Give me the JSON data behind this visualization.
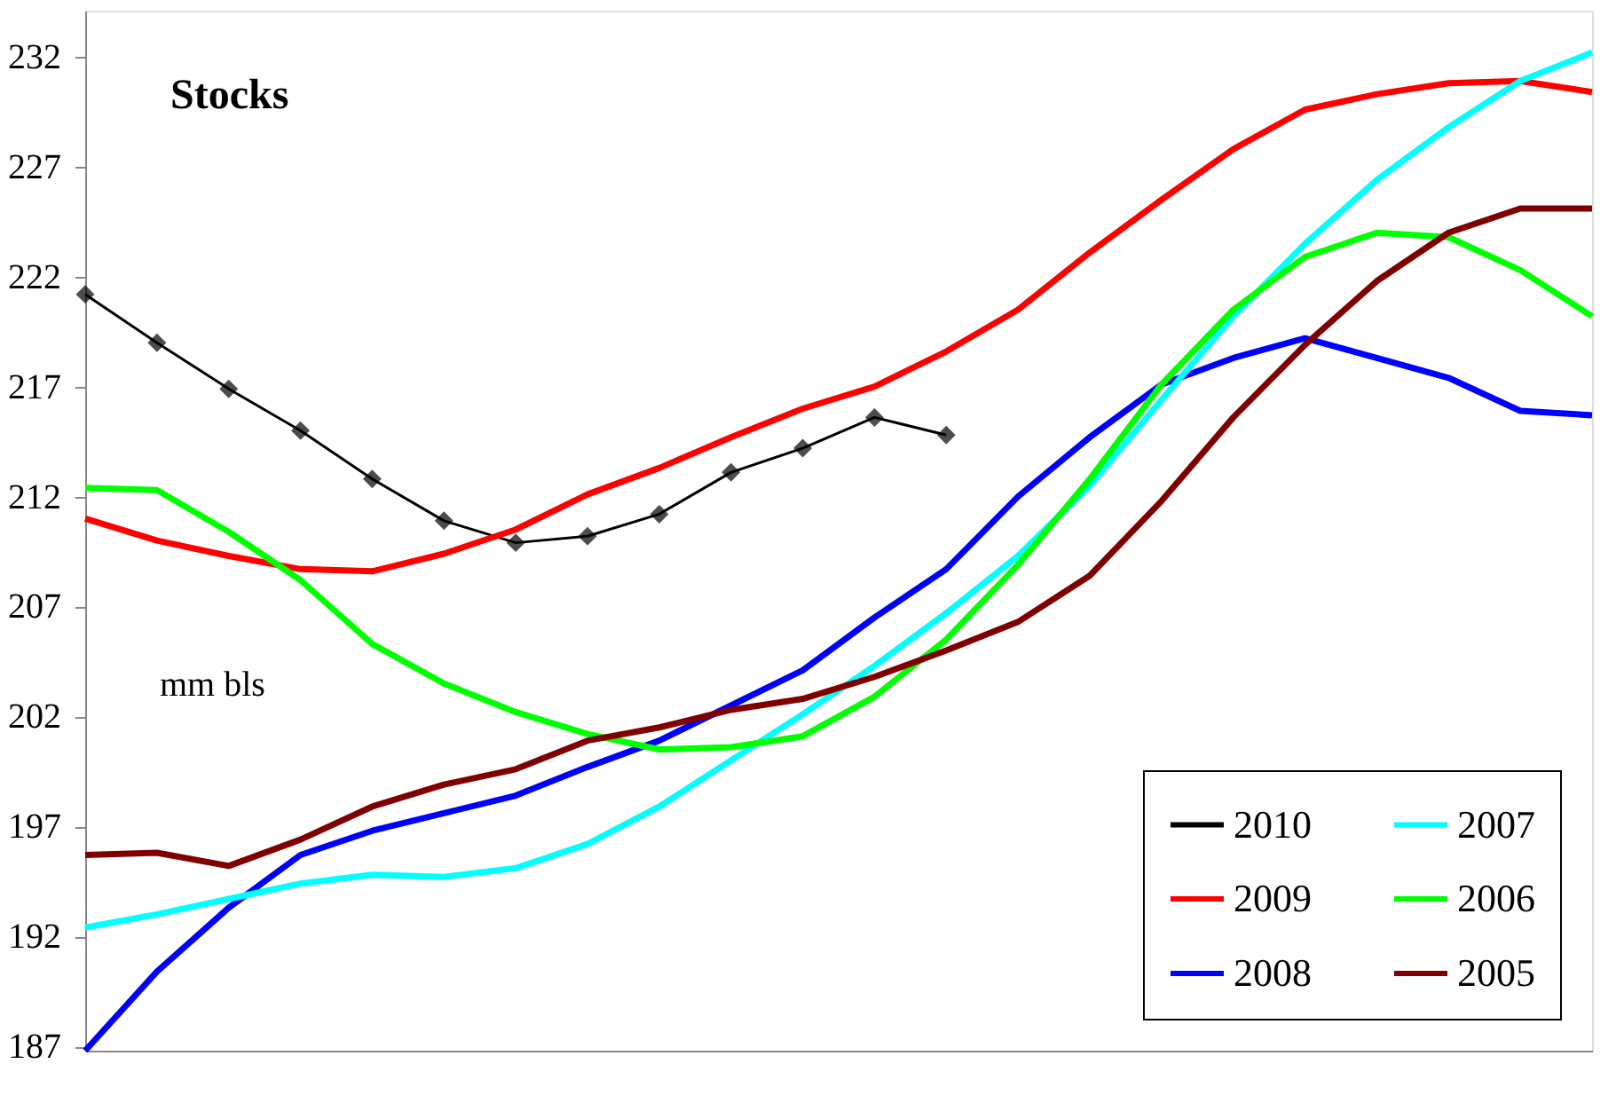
{
  "chart_data": {
    "type": "line",
    "annotations": [
      "Stocks",
      "mm  bls"
    ],
    "categories": [
      null,
      null,
      null,
      null,
      null,
      null,
      null,
      null,
      null,
      null,
      null,
      null,
      null,
      null,
      null,
      null,
      null,
      null,
      null,
      null,
      null,
      null
    ],
    "ylim": [
      186.8,
      234.1
    ],
    "yticks": [
      187,
      192,
      197,
      202,
      207,
      212,
      217,
      222,
      227,
      232
    ],
    "tick_labels": "y",
    "grid": false,
    "legend": "bottom right",
    "line_style": "solid",
    "series": [
      {
        "name": "2010",
        "color": "#000000",
        "marker": "diamond",
        "values": [
          221.2,
          219.0,
          216.9,
          215.0,
          212.8,
          210.9,
          209.9,
          210.2,
          211.2,
          213.1,
          214.2,
          215.6,
          214.8,
          null,
          null,
          null,
          null,
          null,
          null,
          null,
          null,
          null
        ]
      },
      {
        "name": "2009",
        "color": "#ff0000",
        "marker": "none",
        "values": [
          211.0,
          210.0,
          209.3,
          208.7,
          208.6,
          209.4,
          210.5,
          212.1,
          213.3,
          214.7,
          216.0,
          217.0,
          218.6,
          220.5,
          223.1,
          225.5,
          227.8,
          229.6,
          230.3,
          230.8,
          230.9,
          230.4
        ]
      },
      {
        "name": "2008",
        "color": "#0000ff",
        "marker": "none",
        "values": [
          186.8,
          190.4,
          193.3,
          195.7,
          196.8,
          197.6,
          198.4,
          199.7,
          200.9,
          202.5,
          204.1,
          206.5,
          208.7,
          212.0,
          214.7,
          217.1,
          218.3,
          219.2,
          218.3,
          217.4,
          215.9,
          215.7
        ]
      },
      {
        "name": "2007",
        "color": "#00ffff",
        "marker": "none",
        "values": [
          192.4,
          193.0,
          193.7,
          194.4,
          194.8,
          194.7,
          195.1,
          196.2,
          197.9,
          200.0,
          202.1,
          204.3,
          206.7,
          209.3,
          212.5,
          216.4,
          220.2,
          223.5,
          226.4,
          228.8,
          230.9,
          232.2
        ]
      },
      {
        "name": "2006",
        "color": "#00ff00",
        "marker": "none",
        "values": [
          212.4,
          212.3,
          210.4,
          208.2,
          205.3,
          203.5,
          202.2,
          201.2,
          200.5,
          200.6,
          201.1,
          202.9,
          205.5,
          208.9,
          212.8,
          217.1,
          220.5,
          222.9,
          224.0,
          223.8,
          222.3,
          220.2
        ]
      },
      {
        "name": "2005",
        "color": "#800000",
        "marker": "none",
        "values": [
          195.7,
          195.8,
          195.2,
          196.4,
          197.9,
          198.9,
          199.6,
          200.9,
          201.5,
          202.3,
          202.8,
          203.8,
          205.0,
          206.3,
          208.4,
          211.8,
          215.6,
          218.9,
          221.8,
          224.0,
          225.1,
          225.1
        ]
      }
    ]
  }
}
